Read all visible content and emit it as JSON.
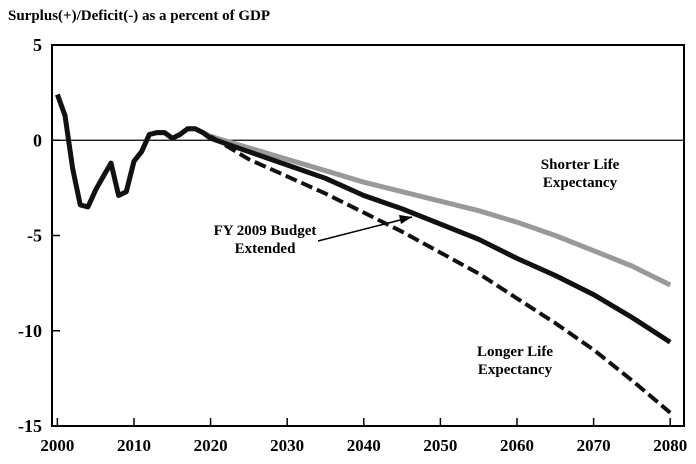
{
  "chart_data": {
    "type": "line",
    "title": "Surplus(+)/Deficit(-) as a percent of GDP",
    "x": [
      2000,
      2001,
      2002,
      2003,
      2004,
      2005,
      2006,
      2007,
      2008,
      2009,
      2010,
      2011,
      2012,
      2013,
      2014,
      2015,
      2016,
      2017,
      2018,
      2019,
      2020,
      2025,
      2030,
      2035,
      2040,
      2045,
      2050,
      2055,
      2060,
      2065,
      2070,
      2075,
      2080
    ],
    "series": [
      {
        "name": "Shorter Life Expectancy",
        "color": "#999999",
        "dash": false,
        "values": [
          null,
          null,
          null,
          null,
          null,
          null,
          null,
          null,
          null,
          -2.7,
          -1.1,
          -0.6,
          0.3,
          0.4,
          0.4,
          0.1,
          0.3,
          0.6,
          0.6,
          0.4,
          0.2,
          -0.4,
          -1.0,
          -1.6,
          -2.2,
          -2.7,
          -3.2,
          -3.7,
          -4.3,
          -5.0,
          -5.8,
          -6.6,
          -7.6
        ]
      },
      {
        "name": "FY 2009 Budget Extended",
        "color": "#111111",
        "dash": false,
        "values": [
          2.4,
          1.3,
          -1.5,
          -3.4,
          -3.5,
          -2.6,
          -1.9,
          -1.2,
          -2.9,
          -2.7,
          -1.1,
          -0.6,
          0.3,
          0.4,
          0.4,
          0.1,
          0.3,
          0.6,
          0.6,
          0.4,
          0.1,
          -0.6,
          -1.3,
          -2.0,
          -2.9,
          -3.6,
          -4.4,
          -5.2,
          -6.2,
          -7.1,
          -8.1,
          -9.3,
          -10.6
        ]
      },
      {
        "name": "Longer Life Expectancy",
        "color": "#111111",
        "dash": true,
        "values": [
          null,
          null,
          null,
          null,
          null,
          null,
          null,
          null,
          null,
          null,
          null,
          null,
          null,
          null,
          null,
          null,
          null,
          null,
          null,
          null,
          0.2,
          -1.0,
          -1.9,
          -2.8,
          -3.8,
          -4.8,
          -5.9,
          -7.0,
          -8.3,
          -9.6,
          -11.0,
          -12.6,
          -14.3
        ]
      }
    ],
    "xlim": [
      1999.3,
      2081.8
    ],
    "xticks": [
      2000,
      2010,
      2020,
      2030,
      2040,
      2050,
      2060,
      2070,
      2080
    ],
    "ylim": [
      -15,
      5
    ],
    "yticks": [
      5,
      0,
      -5,
      -10,
      -15
    ],
    "zero_line": true
  }
}
